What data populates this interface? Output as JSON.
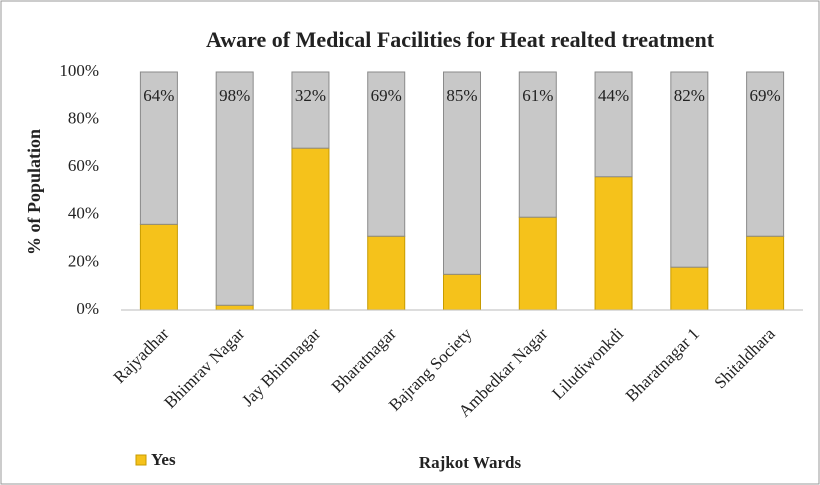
{
  "chart_data": {
    "type": "stacked_bar",
    "title": "Aware of Medical Facilities for Heat realted treatment",
    "x_label": "Rajkot Wards",
    "y_label": "% of Population",
    "categories": [
      "Rajyadhar",
      "Bhimrav Nagar",
      "Jay Bhimnagar",
      "Bharatnagar",
      "Bajrang Society",
      "Ambedkar Nagar",
      "Liludiwonkdi",
      "Bharatnagar 1",
      "Shitaldhara"
    ],
    "series": [
      {
        "name": "Yes",
        "color": "#f5c21b",
        "values": [
          36,
          2,
          68,
          31,
          15,
          39,
          56,
          18,
          31
        ]
      },
      {
        "color": "#c8c8c8",
        "values": [
          64,
          98,
          32,
          69,
          85,
          61,
          44,
          82,
          69
        ],
        "value_labels": [
          "64%",
          "98%",
          "32%",
          "69%",
          "85%",
          "61%",
          "44%",
          "82%",
          "69%"
        ]
      }
    ],
    "ylim": [
      0,
      100
    ],
    "yticks": [
      {
        "value": 0,
        "label": "0%"
      },
      {
        "value": 20,
        "label": "20%"
      },
      {
        "value": 40,
        "label": "40%"
      },
      {
        "value": 60,
        "label": "60%"
      },
      {
        "value": 80,
        "label": "80%"
      },
      {
        "value": 100,
        "label": "100%"
      }
    ],
    "legend": "bottom-left"
  }
}
